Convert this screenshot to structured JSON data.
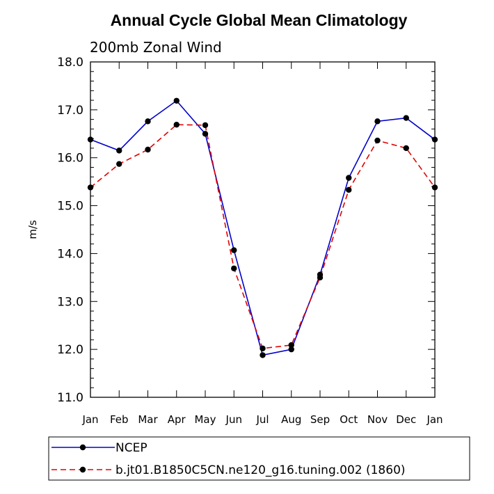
{
  "chart_data": {
    "type": "line",
    "title": "Annual Cycle Global Mean Climatology",
    "subtitle": "200mb Zonal Wind",
    "ylabel": "m/s",
    "xlabel": "",
    "ylim": [
      11.0,
      18.0
    ],
    "yticks": [
      "11.0",
      "12.0",
      "13.0",
      "14.0",
      "15.0",
      "16.0",
      "17.0",
      "18.0"
    ],
    "categories": [
      "Jan",
      "Feb",
      "Mar",
      "Apr",
      "May",
      "Jun",
      "Jul",
      "Aug",
      "Sep",
      "Oct",
      "Nov",
      "Dec",
      "Jan"
    ],
    "grid": false,
    "legend_position": "bottom",
    "series": [
      {
        "name": "NCEP",
        "color": "#0000cc",
        "style": "solid",
        "values": [
          16.38,
          16.15,
          16.76,
          17.19,
          16.5,
          14.07,
          11.88,
          12.0,
          13.56,
          15.58,
          16.76,
          16.83,
          16.38
        ]
      },
      {
        "name": "b.jt01.B1850C5CN.ne120_g16.tuning.002 (1860)",
        "color": "#e00000",
        "style": "dashed",
        "values": [
          15.38,
          15.87,
          16.17,
          16.69,
          16.68,
          13.69,
          12.02,
          12.09,
          13.5,
          15.33,
          16.36,
          16.2,
          15.38
        ]
      }
    ]
  }
}
